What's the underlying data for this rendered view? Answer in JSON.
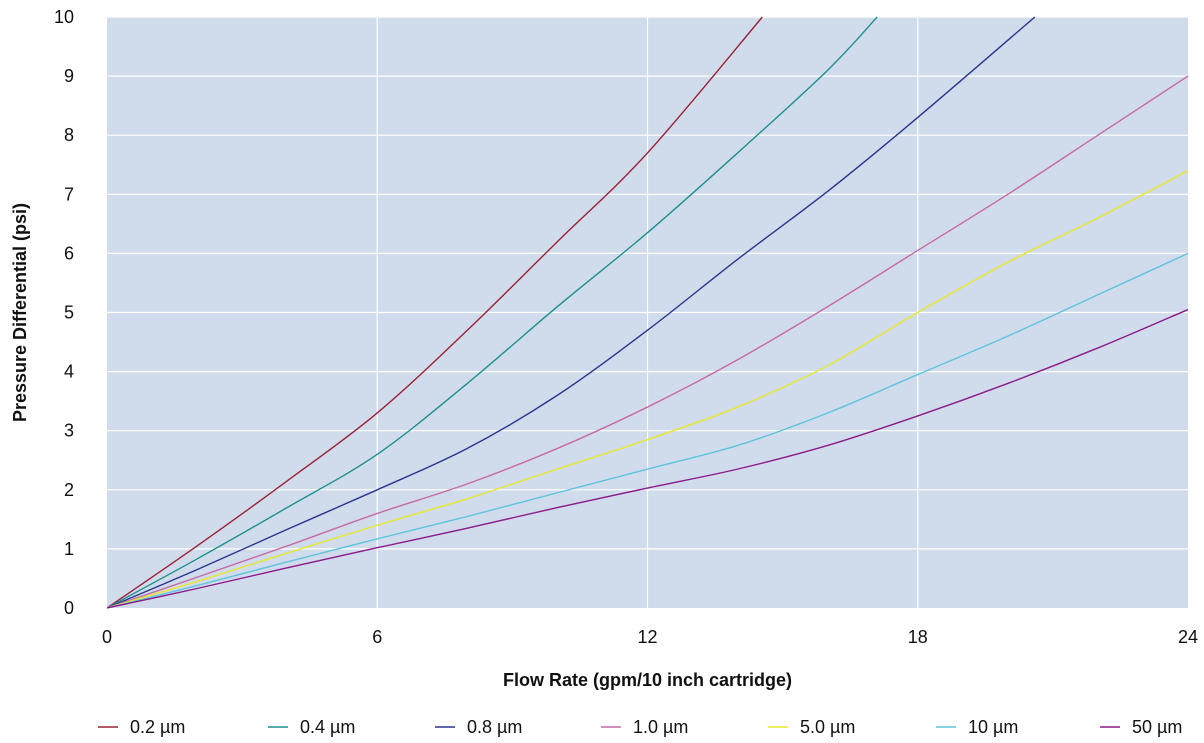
{
  "chart_data": {
    "type": "line",
    "title": "",
    "xlabel": "Flow Rate (gpm/10 inch cartridge)",
    "ylabel": "Pressure Differential (psi)",
    "xlim": [
      0,
      24
    ],
    "ylim": [
      0,
      10
    ],
    "x_ticks": [
      "0",
      "6",
      "12",
      "18",
      "24"
    ],
    "y_ticks": [
      "0",
      "1",
      "2",
      "3",
      "4",
      "5",
      "6",
      "7",
      "8",
      "9",
      "10"
    ],
    "x_tick_values": [
      0,
      6,
      12,
      18,
      24
    ],
    "y_tick_values": [
      0,
      1,
      2,
      3,
      4,
      5,
      6,
      7,
      8,
      9,
      10
    ],
    "grid": true,
    "plot_background": "#d0dbeb",
    "grid_color": "#ffffff",
    "legend_position": "bottom",
    "series": [
      {
        "name": "0.2 µm",
        "color": "#9b2335",
        "points": [
          [
            0,
            0
          ],
          [
            2,
            1.05
          ],
          [
            4,
            2.15
          ],
          [
            6,
            3.3
          ],
          [
            8,
            4.7
          ],
          [
            10,
            6.2
          ],
          [
            12,
            7.7
          ],
          [
            14.55,
            10
          ]
        ]
      },
      {
        "name": "0.4 µm",
        "color": "#1f8f8f",
        "points": [
          [
            0,
            0
          ],
          [
            2,
            0.83
          ],
          [
            4,
            1.7
          ],
          [
            6,
            2.6
          ],
          [
            8,
            3.8
          ],
          [
            10,
            5.1
          ],
          [
            12,
            6.35
          ],
          [
            14,
            7.7
          ],
          [
            16,
            9.1
          ],
          [
            17.1,
            10
          ]
        ]
      },
      {
        "name": "0.8 µm",
        "color": "#2b3590",
        "points": [
          [
            0,
            0
          ],
          [
            2,
            0.65
          ],
          [
            4,
            1.33
          ],
          [
            6,
            2.0
          ],
          [
            8,
            2.7
          ],
          [
            10,
            3.6
          ],
          [
            12,
            4.7
          ],
          [
            14,
            5.9
          ],
          [
            16,
            7.05
          ],
          [
            18,
            8.3
          ],
          [
            20.6,
            10
          ]
        ]
      },
      {
        "name": "1.0 µm",
        "color": "#c76aa6",
        "points": [
          [
            0,
            0
          ],
          [
            2,
            0.52
          ],
          [
            4,
            1.05
          ],
          [
            6,
            1.6
          ],
          [
            8,
            2.1
          ],
          [
            10,
            2.7
          ],
          [
            12,
            3.4
          ],
          [
            14,
            4.2
          ],
          [
            16,
            5.1
          ],
          [
            18,
            6.05
          ],
          [
            20,
            7.0
          ],
          [
            22,
            8.0
          ],
          [
            24,
            9.0
          ]
        ]
      },
      {
        "name": "5.0 µm",
        "color": "#e8e82a",
        "points": [
          [
            0,
            0
          ],
          [
            2,
            0.45
          ],
          [
            4,
            0.93
          ],
          [
            6,
            1.4
          ],
          [
            8,
            1.85
          ],
          [
            10,
            2.35
          ],
          [
            12,
            2.85
          ],
          [
            14,
            3.4
          ],
          [
            16,
            4.1
          ],
          [
            18,
            5.0
          ],
          [
            20,
            5.85
          ],
          [
            22,
            6.6
          ],
          [
            24,
            7.4
          ]
        ]
      },
      {
        "name": "10 µm",
        "color": "#5fc3de",
        "points": [
          [
            0,
            0
          ],
          [
            2,
            0.38
          ],
          [
            4,
            0.78
          ],
          [
            6,
            1.17
          ],
          [
            8,
            1.55
          ],
          [
            10,
            1.95
          ],
          [
            12,
            2.35
          ],
          [
            14,
            2.75
          ],
          [
            16,
            3.3
          ],
          [
            18,
            3.95
          ],
          [
            20,
            4.6
          ],
          [
            22,
            5.3
          ],
          [
            24,
            6.0
          ]
        ]
      },
      {
        "name": "50 µm",
        "color": "#8b1a8b",
        "points": [
          [
            0,
            0
          ],
          [
            2,
            0.33
          ],
          [
            4,
            0.68
          ],
          [
            6,
            1.02
          ],
          [
            8,
            1.35
          ],
          [
            10,
            1.7
          ],
          [
            12,
            2.03
          ],
          [
            14,
            2.35
          ],
          [
            16,
            2.75
          ],
          [
            18,
            3.25
          ],
          [
            20,
            3.8
          ],
          [
            22,
            4.4
          ],
          [
            24,
            5.05
          ]
        ]
      }
    ]
  }
}
